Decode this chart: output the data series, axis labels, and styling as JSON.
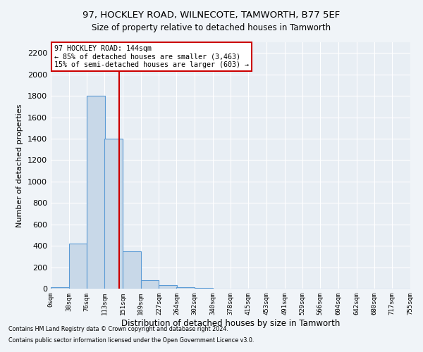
{
  "title": "97, HOCKLEY ROAD, WILNECOTE, TAMWORTH, B77 5EF",
  "subtitle": "Size of property relative to detached houses in Tamworth",
  "xlabel": "Distribution of detached houses by size in Tamworth",
  "ylabel": "Number of detached properties",
  "bin_edges": [
    0,
    38,
    76,
    113,
    151,
    189,
    227,
    264,
    302,
    340,
    378,
    415,
    453,
    491,
    529,
    566,
    604,
    642,
    680,
    717,
    755
  ],
  "bar_heights": [
    10,
    420,
    1800,
    1400,
    350,
    80,
    30,
    15,
    5,
    2,
    1,
    0,
    0,
    0,
    0,
    0,
    0,
    0,
    0,
    0
  ],
  "bar_color": "#c8d8e8",
  "bar_edge_color": "#5b9bd5",
  "subject_size": 144,
  "subject_line_color": "#cc0000",
  "ylim": [
    0,
    2300
  ],
  "yticks": [
    0,
    200,
    400,
    600,
    800,
    1000,
    1200,
    1400,
    1600,
    1800,
    2000,
    2200
  ],
  "annotation_text": "97 HOCKLEY ROAD: 144sqm\n← 85% of detached houses are smaller (3,463)\n15% of semi-detached houses are larger (603) →",
  "annotation_box_color": "#ffffff",
  "annotation_box_edge_color": "#cc0000",
  "background_color": "#e8eef4",
  "fig_background_color": "#f0f4f8",
  "grid_color": "#ffffff",
  "footer_line1": "Contains HM Land Registry data © Crown copyright and database right 2024.",
  "footer_line2": "Contains public sector information licensed under the Open Government Licence v3.0."
}
